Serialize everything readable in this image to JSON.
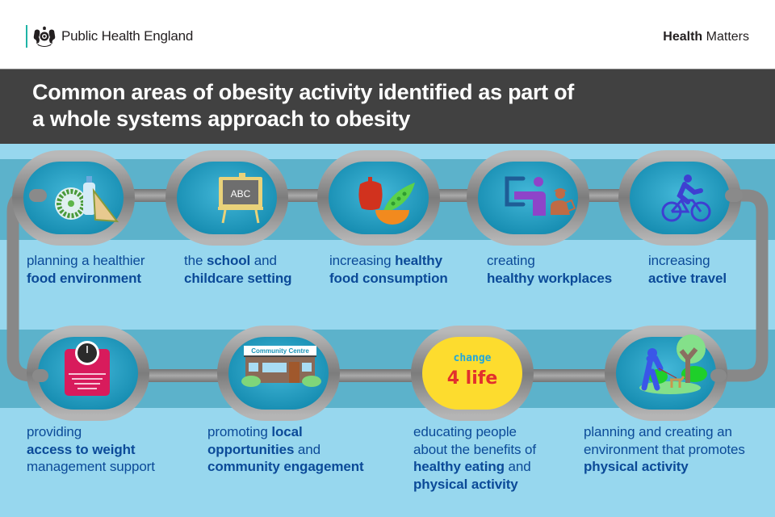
{
  "header": {
    "org_name": "Public Health England",
    "brand_bold": "Health",
    "brand_regular": " Matters"
  },
  "title": {
    "line1": "Common areas of obesity activity identified as part of",
    "line2": "a whole systems approach to obesity"
  },
  "colors": {
    "background_light": "#97d7ee",
    "band_dark": "#5cb2cb",
    "title_bar": "#414141",
    "caption_text": "#0b4a98",
    "chain_grey": "#8c8c8c",
    "link_inner": "#1a94b8",
    "change4life_yellow": "#fddc2e"
  },
  "items": [
    {
      "icon": "healthy-food-icon",
      "caption": [
        {
          "text": "planning a healthier",
          "bold": false
        },
        {
          "br": true
        },
        {
          "text": "food environment",
          "bold": true
        }
      ]
    },
    {
      "icon": "school-blackboard-icon",
      "blackboard_text": "ABC",
      "caption": [
        {
          "text": "the ",
          "bold": false
        },
        {
          "text": "school",
          "bold": true
        },
        {
          "text": " and",
          "bold": false
        },
        {
          "br": true
        },
        {
          "text": "childcare setting",
          "bold": true
        }
      ]
    },
    {
      "icon": "fruit-vegetables-icon",
      "caption": [
        {
          "text": "increasing ",
          "bold": false
        },
        {
          "text": "healthy",
          "bold": true
        },
        {
          "br": true
        },
        {
          "text": "food consumption",
          "bold": true
        }
      ]
    },
    {
      "icon": "workplace-icon",
      "caption": [
        {
          "text": "creating",
          "bold": false
        },
        {
          "br": true
        },
        {
          "text": "healthy workplaces",
          "bold": true
        }
      ]
    },
    {
      "icon": "cyclist-icon",
      "caption": [
        {
          "text": "increasing",
          "bold": false
        },
        {
          "br": true
        },
        {
          "text": "active travel",
          "bold": true
        }
      ]
    },
    {
      "icon": "weighing-scale-icon",
      "caption": [
        {
          "text": "providing",
          "bold": false
        },
        {
          "br": true
        },
        {
          "text": "access to weight",
          "bold": true
        },
        {
          "br": true
        },
        {
          "text": "management support",
          "bold": false
        }
      ]
    },
    {
      "icon": "community-centre-icon",
      "sign_text": "Community Centre",
      "caption": [
        {
          "text": "promoting ",
          "bold": false
        },
        {
          "text": "local",
          "bold": true
        },
        {
          "br": true
        },
        {
          "text": "opportunities",
          "bold": true
        },
        {
          "text": " and",
          "bold": false
        },
        {
          "br": true
        },
        {
          "text": "community engagement",
          "bold": true
        }
      ]
    },
    {
      "icon": "change4life-logo-icon",
      "logo_line1": "change",
      "logo_line2": "4 life",
      "caption": [
        {
          "text": "educating people",
          "bold": false
        },
        {
          "br": true
        },
        {
          "text": "about the benefits of",
          "bold": false
        },
        {
          "br": true
        },
        {
          "text": "healthy eating",
          "bold": true
        },
        {
          "text": " and",
          "bold": false
        },
        {
          "br": true
        },
        {
          "text": "physical activity",
          "bold": true
        }
      ]
    },
    {
      "icon": "park-dog-walker-icon",
      "caption": [
        {
          "text": "planning and creating an",
          "bold": false
        },
        {
          "br": true
        },
        {
          "text": "environment that promotes",
          "bold": false
        },
        {
          "br": true
        },
        {
          "text": "physical activity",
          "bold": true
        }
      ]
    }
  ]
}
